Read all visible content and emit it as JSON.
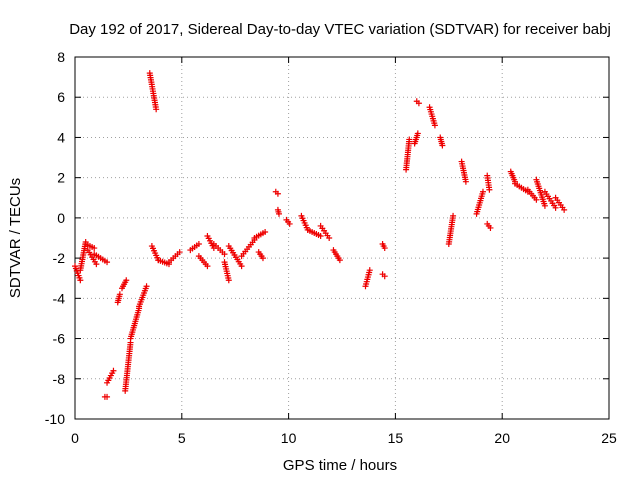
{
  "chart_data": {
    "type": "scatter",
    "title": "Day 192 of 2017, Sidereal Day-to-day VTEC variation (SDTVAR) for receiver babj",
    "xlabel": "GPS time / hours",
    "ylabel": "SDTVAR / TECUs",
    "xlim": [
      0,
      25
    ],
    "ylim": [
      -10,
      8
    ],
    "xticks": [
      0,
      5,
      10,
      15,
      20,
      25
    ],
    "yticks": [
      -10,
      -8,
      -6,
      -4,
      -2,
      0,
      2,
      4,
      6,
      8
    ],
    "xtick_labels": [
      "0",
      "5",
      "10",
      "15",
      "20",
      "25"
    ],
    "ytick_labels": [
      "-10",
      "-8",
      "-6",
      "-4",
      "-2",
      "0",
      "2",
      "4",
      "6",
      "8"
    ],
    "grid": true,
    "marker": "plus",
    "marker_color": "#ee0000",
    "series": [
      {
        "name": "babj",
        "segments": [
          [
            0.0,
            -2.4,
            0.25,
            -3.1
          ],
          [
            0.25,
            -2.6,
            0.5,
            -1.2
          ],
          [
            0.5,
            -1.3,
            0.9,
            -1.5
          ],
          [
            0.9,
            -1.8,
            1.5,
            -2.2
          ],
          [
            0.6,
            -1.6,
            1.0,
            -2.3
          ],
          [
            1.4,
            -8.9,
            1.5,
            -8.9
          ],
          [
            1.5,
            -8.2,
            1.8,
            -7.6
          ],
          [
            2.0,
            -4.2,
            2.1,
            -3.8
          ],
          [
            2.2,
            -3.5,
            2.4,
            -3.1
          ],
          [
            2.35,
            -8.6,
            2.6,
            -6.2
          ],
          [
            2.6,
            -6.0,
            3.0,
            -4.5
          ],
          [
            3.0,
            -4.4,
            3.35,
            -3.4
          ],
          [
            3.5,
            7.2,
            3.8,
            5.4
          ],
          [
            3.6,
            -1.4,
            3.9,
            -2.1
          ],
          [
            3.9,
            -2.1,
            4.4,
            -2.3
          ],
          [
            4.4,
            -2.2,
            4.9,
            -1.7
          ],
          [
            5.4,
            -1.6,
            5.8,
            -1.3
          ],
          [
            5.8,
            -1.9,
            6.2,
            -2.4
          ],
          [
            6.2,
            -0.9,
            6.5,
            -1.5
          ],
          [
            6.5,
            -1.3,
            7.0,
            -1.8
          ],
          [
            7.0,
            -2.2,
            7.2,
            -3.1
          ],
          [
            7.2,
            -1.4,
            7.8,
            -2.4
          ],
          [
            7.8,
            -1.9,
            8.4,
            -1.1
          ],
          [
            8.4,
            -1.0,
            8.9,
            -0.7
          ],
          [
            8.6,
            -1.7,
            8.8,
            -2.0
          ],
          [
            9.4,
            1.3,
            9.5,
            1.2
          ],
          [
            9.5,
            0.4,
            9.55,
            0.2
          ],
          [
            9.9,
            -0.1,
            10.05,
            -0.3
          ],
          [
            10.6,
            0.1,
            10.9,
            -0.6
          ],
          [
            10.9,
            -0.6,
            11.5,
            -0.9
          ],
          [
            11.5,
            -0.4,
            11.9,
            -1.0
          ],
          [
            12.1,
            -1.6,
            12.4,
            -2.1
          ],
          [
            13.6,
            -3.4,
            13.8,
            -2.6
          ],
          [
            14.4,
            -1.3,
            14.5,
            -1.5
          ],
          [
            14.4,
            -2.8,
            14.5,
            -2.9
          ],
          [
            15.5,
            2.4,
            15.65,
            3.9
          ],
          [
            15.9,
            3.7,
            16.05,
            4.2
          ],
          [
            16.0,
            5.8,
            16.1,
            5.7
          ],
          [
            16.6,
            5.5,
            16.85,
            4.6
          ],
          [
            17.1,
            4.0,
            17.2,
            3.6
          ],
          [
            17.5,
            -1.3,
            17.7,
            0.1
          ],
          [
            18.1,
            2.8,
            18.3,
            1.8
          ],
          [
            18.8,
            0.2,
            19.1,
            1.3
          ],
          [
            19.3,
            2.1,
            19.4,
            1.4
          ],
          [
            19.3,
            -0.3,
            19.45,
            -0.5
          ],
          [
            20.4,
            2.3,
            20.6,
            1.8
          ],
          [
            20.6,
            1.7,
            21.2,
            1.3
          ],
          [
            21.2,
            1.4,
            21.6,
            0.9
          ],
          [
            21.6,
            1.9,
            22.0,
            0.6
          ],
          [
            22.0,
            1.3,
            22.5,
            0.5
          ],
          [
            22.5,
            1.0,
            22.9,
            0.4
          ]
        ]
      }
    ]
  }
}
